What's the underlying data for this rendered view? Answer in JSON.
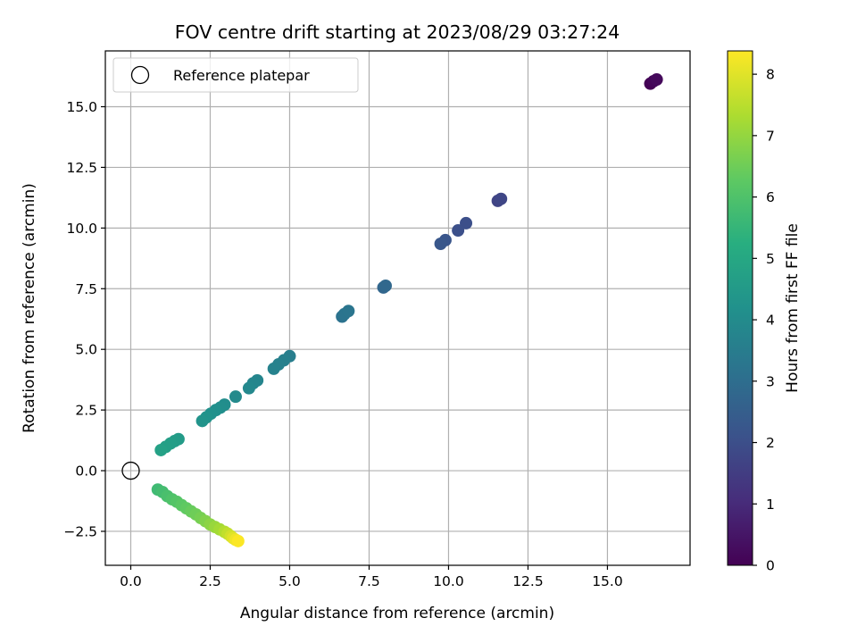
{
  "chart_data": {
    "type": "scatter",
    "title": "FOV centre drift starting at 2023/08/29 03:27:24",
    "xlabel": "Angular distance from reference (arcmin)",
    "ylabel": "Rotation from reference (arcmin)",
    "xlim": [
      -0.8,
      17.6
    ],
    "ylim": [
      -3.9,
      17.3
    ],
    "xticks": [
      0.0,
      2.5,
      5.0,
      7.5,
      10.0,
      12.5,
      15.0
    ],
    "xtick_labels": [
      "0.0",
      "2.5",
      "5.0",
      "7.5",
      "10.0",
      "12.5",
      "15.0"
    ],
    "yticks": [
      -2.5,
      0.0,
      2.5,
      5.0,
      7.5,
      10.0,
      12.5,
      15.0
    ],
    "ytick_labels": [
      "−2.5",
      "0.0",
      "2.5",
      "5.0",
      "7.5",
      "10.0",
      "12.5",
      "15.0"
    ],
    "grid": true,
    "legend": {
      "position": "top-left",
      "entries": [
        {
          "label": "Reference platepar",
          "marker": "open-circle",
          "x": 0,
          "y": 0
        }
      ]
    },
    "colorbar": {
      "label": "Hours from first FF file",
      "colormap": "viridis",
      "range": [
        0,
        8.38
      ],
      "ticks": [
        0,
        1,
        2,
        3,
        4,
        5,
        6,
        7,
        8
      ],
      "tick_labels": [
        "0",
        "1",
        "2",
        "3",
        "4",
        "5",
        "6",
        "7",
        "8"
      ]
    },
    "points": [
      {
        "x": 16.35,
        "y": 15.95,
        "c": 0.0
      },
      {
        "x": 16.45,
        "y": 16.05,
        "c": 0.1
      },
      {
        "x": 16.55,
        "y": 16.12,
        "c": 0.2
      },
      {
        "x": 11.55,
        "y": 11.12,
        "c": 1.7
      },
      {
        "x": 11.65,
        "y": 11.2,
        "c": 1.75
      },
      {
        "x": 10.55,
        "y": 10.2,
        "c": 2.0
      },
      {
        "x": 10.3,
        "y": 9.9,
        "c": 2.05
      },
      {
        "x": 9.9,
        "y": 9.5,
        "c": 2.2
      },
      {
        "x": 9.75,
        "y": 9.35,
        "c": 2.25
      },
      {
        "x": 7.95,
        "y": 7.55,
        "c": 2.75
      },
      {
        "x": 8.02,
        "y": 7.62,
        "c": 2.8
      },
      {
        "x": 6.65,
        "y": 6.35,
        "c": 3.15
      },
      {
        "x": 6.72,
        "y": 6.45,
        "c": 3.2
      },
      {
        "x": 6.85,
        "y": 6.58,
        "c": 3.25
      },
      {
        "x": 5.0,
        "y": 4.72,
        "c": 3.55
      },
      {
        "x": 4.82,
        "y": 4.55,
        "c": 3.6
      },
      {
        "x": 4.65,
        "y": 4.38,
        "c": 3.65
      },
      {
        "x": 4.5,
        "y": 4.2,
        "c": 3.7
      },
      {
        "x": 3.98,
        "y": 3.72,
        "c": 3.78
      },
      {
        "x": 3.85,
        "y": 3.6,
        "c": 3.83
      },
      {
        "x": 3.72,
        "y": 3.4,
        "c": 3.88
      },
      {
        "x": 3.3,
        "y": 3.05,
        "c": 3.95
      },
      {
        "x": 2.95,
        "y": 2.72,
        "c": 4.05
      },
      {
        "x": 2.82,
        "y": 2.6,
        "c": 4.1
      },
      {
        "x": 2.68,
        "y": 2.5,
        "c": 4.15
      },
      {
        "x": 2.52,
        "y": 2.35,
        "c": 4.2
      },
      {
        "x": 2.38,
        "y": 2.2,
        "c": 4.25
      },
      {
        "x": 2.25,
        "y": 2.05,
        "c": 4.3
      },
      {
        "x": 1.5,
        "y": 1.3,
        "c": 4.55
      },
      {
        "x": 1.38,
        "y": 1.22,
        "c": 4.6
      },
      {
        "x": 1.25,
        "y": 1.12,
        "c": 4.65
      },
      {
        "x": 1.1,
        "y": 0.98,
        "c": 4.7
      },
      {
        "x": 0.95,
        "y": 0.85,
        "c": 4.75
      },
      {
        "x": 0.85,
        "y": -0.78,
        "c": 5.7
      },
      {
        "x": 1.0,
        "y": -0.88,
        "c": 5.8
      },
      {
        "x": 1.15,
        "y": -1.05,
        "c": 5.9
      },
      {
        "x": 1.3,
        "y": -1.18,
        "c": 6.0
      },
      {
        "x": 1.45,
        "y": -1.28,
        "c": 6.1
      },
      {
        "x": 1.6,
        "y": -1.42,
        "c": 6.2
      },
      {
        "x": 1.75,
        "y": -1.55,
        "c": 6.3
      },
      {
        "x": 1.9,
        "y": -1.68,
        "c": 6.4
      },
      {
        "x": 2.05,
        "y": -1.8,
        "c": 6.5
      },
      {
        "x": 2.2,
        "y": -1.95,
        "c": 6.6
      },
      {
        "x": 2.35,
        "y": -2.08,
        "c": 6.75
      },
      {
        "x": 2.5,
        "y": -2.22,
        "c": 6.9
      },
      {
        "x": 2.65,
        "y": -2.32,
        "c": 7.05
      },
      {
        "x": 2.8,
        "y": -2.42,
        "c": 7.2
      },
      {
        "x": 2.95,
        "y": -2.52,
        "c": 7.4
      },
      {
        "x": 3.05,
        "y": -2.6,
        "c": 7.6
      },
      {
        "x": 3.15,
        "y": -2.7,
        "c": 7.8
      },
      {
        "x": 3.22,
        "y": -2.78,
        "c": 8.0
      },
      {
        "x": 3.3,
        "y": -2.85,
        "c": 8.2
      },
      {
        "x": 3.38,
        "y": -2.9,
        "c": 8.35
      }
    ]
  }
}
